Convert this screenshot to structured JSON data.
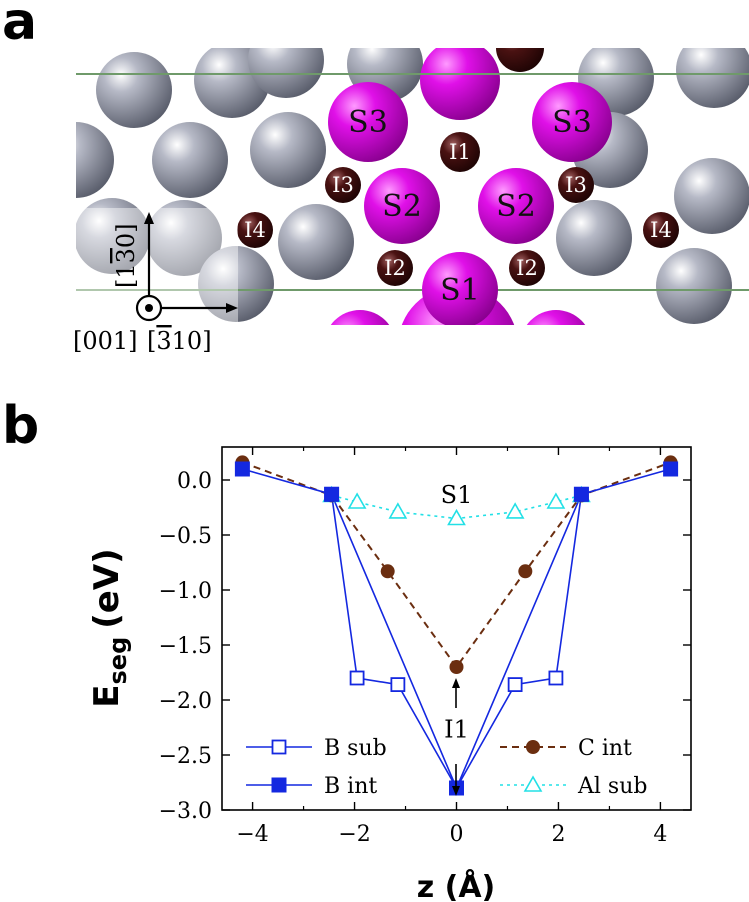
{
  "panels": {
    "a": "a",
    "b": "b"
  },
  "structure": {
    "site_labels": [
      {
        "text": "S3",
        "kind": "sub"
      },
      {
        "text": "S3",
        "kind": "sub"
      },
      {
        "text": "S2",
        "kind": "sub"
      },
      {
        "text": "S2",
        "kind": "sub"
      },
      {
        "text": "S1",
        "kind": "sub"
      },
      {
        "text": "I1",
        "kind": "int"
      },
      {
        "text": "I3",
        "kind": "int"
      },
      {
        "text": "I3",
        "kind": "int"
      },
      {
        "text": "I4",
        "kind": "int"
      },
      {
        "text": "I4",
        "kind": "int"
      },
      {
        "text": "I2",
        "kind": "int"
      },
      {
        "text": "I2",
        "kind": "int"
      }
    ],
    "axis_vertical": "[1̅3̅0]",
    "axis_vertical_parts": [
      "[1",
      "3",
      "0]"
    ],
    "axis_out_of_plane": "[001]",
    "axis_horizontal": "[3̅10]",
    "axis_horizontal_parts": [
      "[",
      "3",
      "10]"
    ],
    "colors": {
      "host_atom": "#8a8e9c",
      "substitutional_site": "#c000c8",
      "interstitial_site": "#3a0c0c",
      "boundary_line": "#6f9a6a"
    }
  },
  "chart_data": {
    "type": "line",
    "xlabel": "z (Å)",
    "ylabel_main": "E",
    "ylabel_sub": "seg",
    "ylabel_unit": "(eV)",
    "xlim": [
      -4.6,
      4.6
    ],
    "ylim": [
      -3.0,
      0.3
    ],
    "xticks": [
      -4,
      -2,
      0,
      2,
      4
    ],
    "xtick_labels": [
      "−4",
      "−2",
      "0",
      "2",
      "4"
    ],
    "yticks": [
      0.0,
      -0.5,
      -1.0,
      -1.5,
      -2.0,
      -2.5,
      -3.0
    ],
    "ytick_labels": [
      "0.0",
      "−0.5",
      "−1.0",
      "−1.5",
      "−2.0",
      "−2.5",
      "−3.0"
    ],
    "annotations": [
      {
        "text": "S1",
        "x": 0.0,
        "y": -0.12
      },
      {
        "text": "I1",
        "x": 0.0,
        "y": -2.25
      }
    ],
    "series": [
      {
        "name": "B sub",
        "color": "#1428e0",
        "dash": "solid",
        "marker": "square-open",
        "x": [
          -2.45,
          -1.95,
          -1.15,
          1.15,
          1.95,
          2.45
        ],
        "y": [
          -0.13,
          -1.8,
          -1.86,
          -1.86,
          -1.8,
          -0.13
        ]
      },
      {
        "name": "B int",
        "color": "#1428e0",
        "dash": "solid",
        "marker": "square-filled",
        "x": [
          -4.2,
          -2.45,
          0.0,
          2.45,
          4.2
        ],
        "y": [
          0.1,
          -0.13,
          -2.8,
          -0.13,
          0.1
        ]
      },
      {
        "name": "C int",
        "color": "#6b2e10",
        "dash": "dash",
        "marker": "circle-filled",
        "x": [
          -4.2,
          -2.45,
          -1.35,
          0.0,
          1.35,
          2.45,
          4.2
        ],
        "y": [
          0.16,
          -0.14,
          -0.83,
          -1.7,
          -0.83,
          -0.14,
          0.16
        ]
      },
      {
        "name": "Al sub",
        "color": "#22e0e6",
        "dash": "dot",
        "marker": "triangle-open",
        "x": [
          -2.45,
          -1.95,
          -1.15,
          0.0,
          1.15,
          1.95,
          2.45
        ],
        "y": [
          -0.14,
          -0.2,
          -0.29,
          -0.35,
          -0.29,
          -0.2,
          -0.14
        ]
      }
    ],
    "legend": {
      "placement": "bottom",
      "left": [
        "B sub",
        "B int"
      ],
      "right": [
        "C int",
        "Al sub"
      ]
    }
  }
}
